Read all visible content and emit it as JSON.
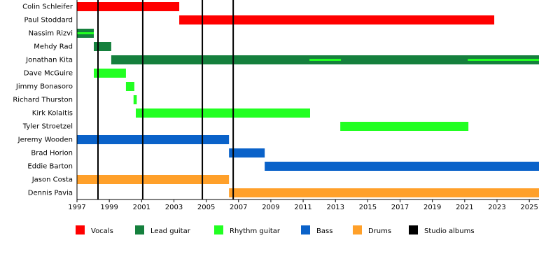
{
  "chart_data": {
    "type": "timeline",
    "members": [
      "Colin Schleifer",
      "Paul Stoddard",
      "Nassim Rizvi",
      "Mehdy Rad",
      "Jonathan Kita",
      "Dave McGuire",
      "Jimmy Bonasoro",
      "Richard Thurston",
      "Kirk Kolaitis",
      "Tyler Stroetzel",
      "Jeremy Wooden",
      "Brad Horion",
      "Eddie Barton",
      "Jason Costa",
      "Dennis Pavia"
    ],
    "xlim": [
      1997,
      2025.6
    ],
    "xticks": [
      1997,
      1999,
      2001,
      2003,
      2005,
      2007,
      2009,
      2011,
      2013,
      2015,
      2017,
      2019,
      2021,
      2023,
      2025
    ],
    "series": [
      {
        "name": "Vocals",
        "color": "#ff0000",
        "bars": [
          {
            "member": 0,
            "start": 1997,
            "end": 2003.33
          },
          {
            "member": 1,
            "start": 2003.33,
            "end": 2022.83
          }
        ]
      },
      {
        "name": "Lead guitar",
        "color": "#15803d",
        "bars": [
          {
            "member": 2,
            "start": 1997,
            "end": 1998.04
          },
          {
            "member": 3,
            "start": 1998.04,
            "end": 1999.12
          },
          {
            "member": 4,
            "start": 1999.12,
            "end": 2025.6
          }
        ]
      },
      {
        "name": "Rhythm guitar",
        "color": "#22ff22",
        "bars": [
          {
            "member": 2,
            "start": 1997,
            "end": 1998.04,
            "overlay": true
          },
          {
            "member": 4,
            "start": 2011.39,
            "end": 2013.34,
            "overlay": true
          },
          {
            "member": 4,
            "start": 2021.19,
            "end": 2025.6,
            "overlay": true
          },
          {
            "member": 5,
            "start": 1998.04,
            "end": 2000.03
          },
          {
            "member": 6,
            "start": 2000.03,
            "end": 2000.55
          },
          {
            "member": 7,
            "start": 2000.5,
            "end": 2000.7
          },
          {
            "member": 8,
            "start": 2000.64,
            "end": 2011.43
          },
          {
            "member": 9,
            "start": 2013.3,
            "end": 2021.23
          }
        ]
      },
      {
        "name": "Bass",
        "color": "#0a62c9",
        "bars": [
          {
            "member": 10,
            "start": 1997,
            "end": 2006.41
          },
          {
            "member": 11,
            "start": 2006.41,
            "end": 2008.62
          },
          {
            "member": 12,
            "start": 2008.62,
            "end": 2025.6
          }
        ]
      },
      {
        "name": "Drums",
        "color": "#ffa02a",
        "bars": [
          {
            "member": 13,
            "start": 1997,
            "end": 2006.41
          },
          {
            "member": 14,
            "start": 2006.41,
            "end": 2025.6
          }
        ]
      }
    ],
    "albums": {
      "name": "Studio albums",
      "color": "#000000",
      "values": [
        1998.3,
        2001.07,
        2004.76,
        2006.67
      ]
    }
  }
}
